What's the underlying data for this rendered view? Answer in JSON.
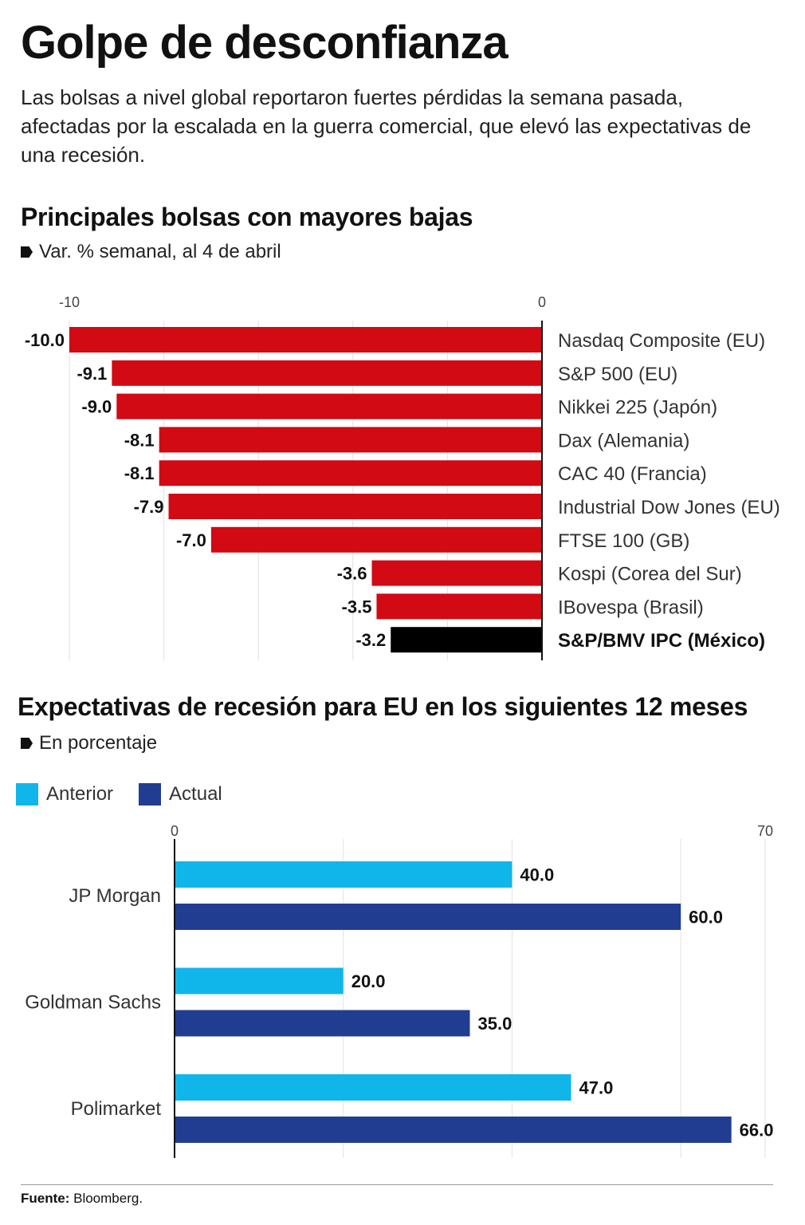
{
  "title": "Golpe de desconfianza",
  "lead": "Las bolsas a nivel global reportaron fuertes pérdidas la semana pasada, afectadas por la escalada en la guerra comercial, que elevó las expectativas de una recesión.",
  "colors": {
    "red": "#d10a14",
    "black": "#000000",
    "anterior": "#10b6ea",
    "actual": "#213d91"
  },
  "chart_data": [
    {
      "type": "bar",
      "orientation": "horizontal",
      "title": "Principales bolsas con mayores bajas",
      "subtitle": "Var. % semanal, al 4 de abril",
      "categories": [
        "Nasdaq Composite (EU)",
        "S&P 500 (EU)",
        "Nikkei 225 (Japón)",
        "Dax (Alemania)",
        "CAC 40 (Francia)",
        "Industrial Dow Jones (EU)",
        "FTSE 100 (GB)",
        "Kospi (Corea del Sur)",
        "IBovespa (Brasil)",
        "S&P/BMV IPC (México)"
      ],
      "values": [
        -10.0,
        -9.1,
        -9.0,
        -8.1,
        -8.1,
        -7.9,
        -7.0,
        -3.6,
        -3.5,
        -3.2
      ],
      "value_labels": [
        "-10.0",
        "-9.1",
        "-9.0",
        "-8.1",
        "-8.1",
        "-7.9",
        "-7.0",
        "-3.6",
        "-3.5",
        "-3.2"
      ],
      "highlight_category": "S&P/BMV IPC (México)",
      "axis_ticks": [
        "-10",
        "0"
      ],
      "xlim": [
        -10,
        0
      ],
      "grid": true
    },
    {
      "type": "bar",
      "orientation": "horizontal",
      "title": "Expectativas de recesión para EU en los siguientes 12 meses",
      "subtitle": "En porcentaje",
      "categories": [
        "JP Morgan",
        "Goldman Sachs",
        "Polimarket"
      ],
      "series": [
        {
          "name": "Anterior",
          "values": [
            40.0,
            20.0,
            47.0
          ],
          "labels": [
            "40.0",
            "20.0",
            "47.0"
          ]
        },
        {
          "name": "Actual",
          "values": [
            60.0,
            35.0,
            66.0
          ],
          "labels": [
            "60.0",
            "35.0",
            "66.0"
          ]
        }
      ],
      "axis_ticks": [
        "0",
        "70"
      ],
      "xlim": [
        0,
        70
      ],
      "grid": true,
      "legend_position": "top-left"
    }
  ],
  "footer": {
    "label": "Fuente:",
    "text": " Bloomberg."
  }
}
